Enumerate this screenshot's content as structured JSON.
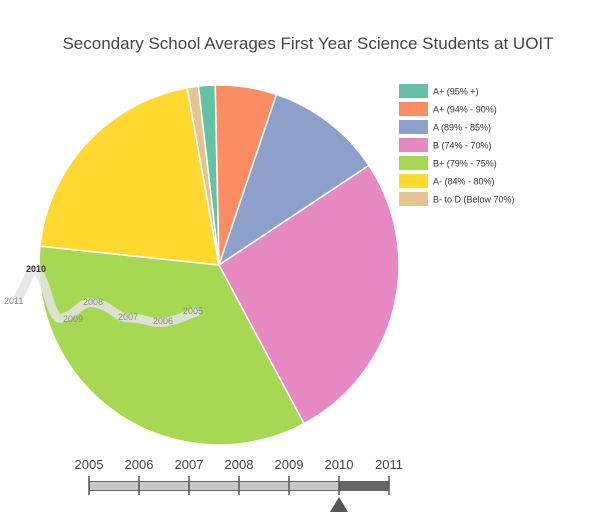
{
  "chart_data": {
    "type": "pie",
    "title": "Secondary School Averages First Year Science Students at UOIT",
    "selected_year": "2010",
    "legend_position": "right",
    "slices": [
      {
        "label": "A+ (95% +)",
        "value": 1.5,
        "color": "#66c2a5"
      },
      {
        "label": "A+ (94% - 90%)",
        "value": 5.5,
        "color": "#fc8d62"
      },
      {
        "label": "A (89% - 85%)",
        "value": 10.5,
        "color": "#8da0cb"
      },
      {
        "label": "B (74% - 70%)",
        "value": 26.5,
        "color": "#e78ac3"
      },
      {
        "label": "B+ (79% - 75%)",
        "value": 34.5,
        "color": "#a6d854"
      },
      {
        "label": "A- (84% - 80%)",
        "value": 20.5,
        "color": "#ffd92f"
      },
      {
        "label": "B- to D (Below 70%)",
        "value": 1.0,
        "color": "#e5c494"
      }
    ],
    "trail_labels": [
      "2011",
      "2010",
      "2009",
      "2008",
      "2007",
      "2006",
      "2005"
    ],
    "slider": {
      "years": [
        "2005",
        "2006",
        "2007",
        "2008",
        "2009",
        "2010",
        "2011"
      ],
      "selected": "2010"
    }
  }
}
